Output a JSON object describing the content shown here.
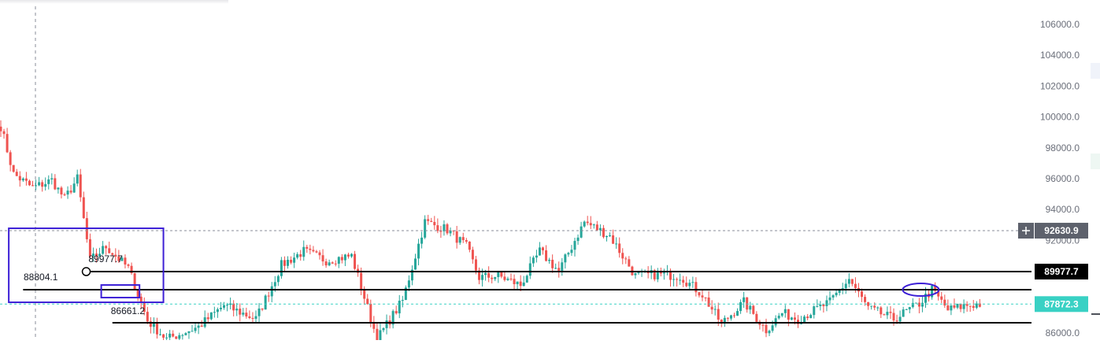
{
  "chart_data": {
    "type": "candlestick",
    "ylim": [
      85700,
      107100
    ],
    "price_axis_ticks": [
      106000,
      104000,
      102000,
      100000,
      98000,
      96000,
      94000,
      92000,
      86000
    ],
    "price_axis_labels": [
      "106000.0",
      "104000.0",
      "102000.0",
      "100000.0",
      "98000.0",
      "96000.0",
      "94000.0",
      "92000.0",
      "86000.0"
    ],
    "colors": {
      "up": "#26a69a",
      "down": "#ef5350",
      "annotation": "#3c1fd6",
      "line": "#000000",
      "current": "#39d1c4"
    },
    "horizontal_lines": [
      {
        "price": 89977.7,
        "label": "89977.7",
        "start_index": 28
      },
      {
        "price": 88804.1,
        "label": "88804.1",
        "start_index": 7
      },
      {
        "price": 86661.2,
        "label": "86661.2",
        "start_index": 35
      }
    ],
    "dashed_lines": [
      {
        "price": 92630.9,
        "label": "92630.9"
      },
      {
        "price": 87872.3,
        "label": "87872.3"
      }
    ],
    "price_badges": [
      {
        "label": "92630.9",
        "price": 92630.9,
        "style": "gray"
      },
      {
        "label": "89977.7",
        "price": 89977.7,
        "style": "black"
      },
      {
        "label": "87872.3",
        "price": 87872.3,
        "style": "teal"
      }
    ],
    "text_annotations": [
      "89977.7",
      "88804.1",
      "86661.2"
    ],
    "candle_count": 308,
    "anchors": [
      [
        0,
        99400
      ],
      [
        4,
        96300
      ],
      [
        10,
        95400
      ],
      [
        16,
        95900
      ],
      [
        20,
        94700
      ],
      [
        24,
        96000
      ],
      [
        28,
        90700
      ],
      [
        33,
        91600
      ],
      [
        40,
        90200
      ],
      [
        46,
        86800
      ],
      [
        52,
        85600
      ],
      [
        62,
        86400
      ],
      [
        70,
        87800
      ],
      [
        80,
        86900
      ],
      [
        88,
        90400
      ],
      [
        95,
        91300
      ],
      [
        102,
        90700
      ],
      [
        110,
        91000
      ],
      [
        118,
        85600
      ],
      [
        126,
        88100
      ],
      [
        133,
        93200
      ],
      [
        140,
        92700
      ],
      [
        146,
        91600
      ],
      [
        150,
        89600
      ],
      [
        156,
        89700
      ],
      [
        163,
        89100
      ],
      [
        169,
        91300
      ],
      [
        175,
        90000
      ],
      [
        183,
        93200
      ],
      [
        191,
        92300
      ],
      [
        199,
        89700
      ],
      [
        206,
        89800
      ],
      [
        213,
        89700
      ],
      [
        220,
        88500
      ],
      [
        226,
        86600
      ],
      [
        233,
        88000
      ],
      [
        240,
        86200
      ],
      [
        245,
        87300
      ],
      [
        250,
        86900
      ],
      [
        260,
        88000
      ],
      [
        266,
        89500
      ],
      [
        272,
        87600
      ],
      [
        280,
        86900
      ],
      [
        288,
        87900
      ],
      [
        292,
        88800
      ],
      [
        297,
        87500
      ],
      [
        303,
        87800
      ],
      [
        307,
        87870
      ]
    ]
  }
}
